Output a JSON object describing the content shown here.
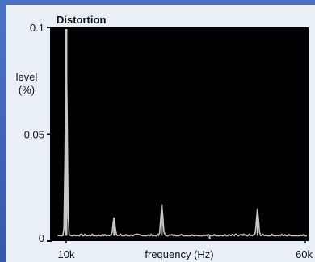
{
  "chart_data": {
    "type": "line",
    "title": "Distortion",
    "xlabel": "frequency (Hz)",
    "ylabel_line1": "level",
    "ylabel_line2": "(%)",
    "x_tick_labels": [
      "10k",
      "60k"
    ],
    "y_tick_labels": [
      "0.1",
      "0.05",
      "0"
    ],
    "xlim": [
      10000,
      60000
    ],
    "ylim": [
      0,
      0.1
    ],
    "y_ticks": [
      0.1,
      0.05,
      0
    ],
    "x_ticks": [
      10000,
      60000
    ],
    "grid": false,
    "noise_floor": 0.0025,
    "peaks": [
      {
        "x": 10000,
        "y": 0.1
      },
      {
        "x": 20000,
        "y": 0.011
      },
      {
        "x": 30000,
        "y": 0.017
      },
      {
        "x": 40000,
        "y": 0.001
      },
      {
        "x": 50000,
        "y": 0.015
      }
    ],
    "colors": {
      "plot_background": "#000000",
      "trace": "#c8c8c8",
      "panel": "#e9eff7",
      "frame": "#3d63b8"
    }
  }
}
